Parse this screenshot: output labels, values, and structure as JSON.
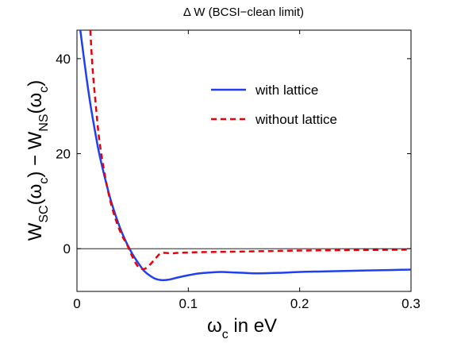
{
  "chart_data": {
    "type": "line",
    "title": "Δ W (BCSI−clean limit)",
    "xlabel": {
      "main": "ω",
      "sub": "c",
      "rest": " in eV"
    },
    "ylabel": {
      "a": "W",
      "a_sub": "SC",
      "b": "(ω",
      "b_sub": "c",
      "c": ") − W",
      "c_sub": "NS",
      "d": "(ω",
      "d_sub": "c",
      "e": ")"
    },
    "xlim": [
      0,
      0.3
    ],
    "ylim": [
      -9,
      46
    ],
    "xticks": [
      0,
      0.1,
      0.2,
      0.3
    ],
    "xtick_labels": [
      "0",
      "0.1",
      "0.2",
      "0.3"
    ],
    "yticks": [
      0,
      20,
      40
    ],
    "ytick_labels": [
      "0",
      "20",
      "40"
    ],
    "zero_line": true,
    "grid": false,
    "legend_position": "upper-right",
    "series": [
      {
        "name": "with lattice",
        "color": "#1f3ff0",
        "style": "solid",
        "x": [
          0.003,
          0.008,
          0.012,
          0.016,
          0.02,
          0.025,
          0.03,
          0.035,
          0.04,
          0.045,
          0.05,
          0.055,
          0.06,
          0.065,
          0.07,
          0.075,
          0.08,
          0.085,
          0.09,
          0.1,
          0.11,
          0.12,
          0.13,
          0.14,
          0.15,
          0.16,
          0.18,
          0.2,
          0.22,
          0.24,
          0.26,
          0.28,
          0.3
        ],
        "y": [
          46,
          37,
          30.5,
          25,
          20,
          15,
          10.5,
          6.8,
          3.6,
          1.0,
          -1.2,
          -3.0,
          -4.6,
          -5.6,
          -6.3,
          -6.6,
          -6.6,
          -6.4,
          -6.1,
          -5.6,
          -5.2,
          -5.0,
          -4.9,
          -5.0,
          -5.1,
          -5.2,
          -5.1,
          -4.9,
          -4.8,
          -4.7,
          -4.6,
          -4.5,
          -4.4
        ]
      },
      {
        "name": "without lattice",
        "color": "#e8000b",
        "style": "dashed",
        "x": [
          0.012,
          0.014,
          0.017,
          0.02,
          0.025,
          0.03,
          0.035,
          0.04,
          0.045,
          0.05,
          0.055,
          0.06,
          0.065,
          0.07,
          0.075,
          0.08,
          0.085,
          0.09,
          0.1,
          0.12,
          0.15,
          0.2,
          0.25,
          0.3
        ],
        "y": [
          46,
          38,
          30,
          23,
          15.5,
          10,
          6.0,
          3.0,
          0.8,
          -1.8,
          -3.8,
          -4.3,
          -3.5,
          -2.2,
          -1.0,
          -0.9,
          -1.0,
          -0.9,
          -0.8,
          -0.7,
          -0.6,
          -0.4,
          -0.3,
          -0.2
        ]
      }
    ]
  }
}
